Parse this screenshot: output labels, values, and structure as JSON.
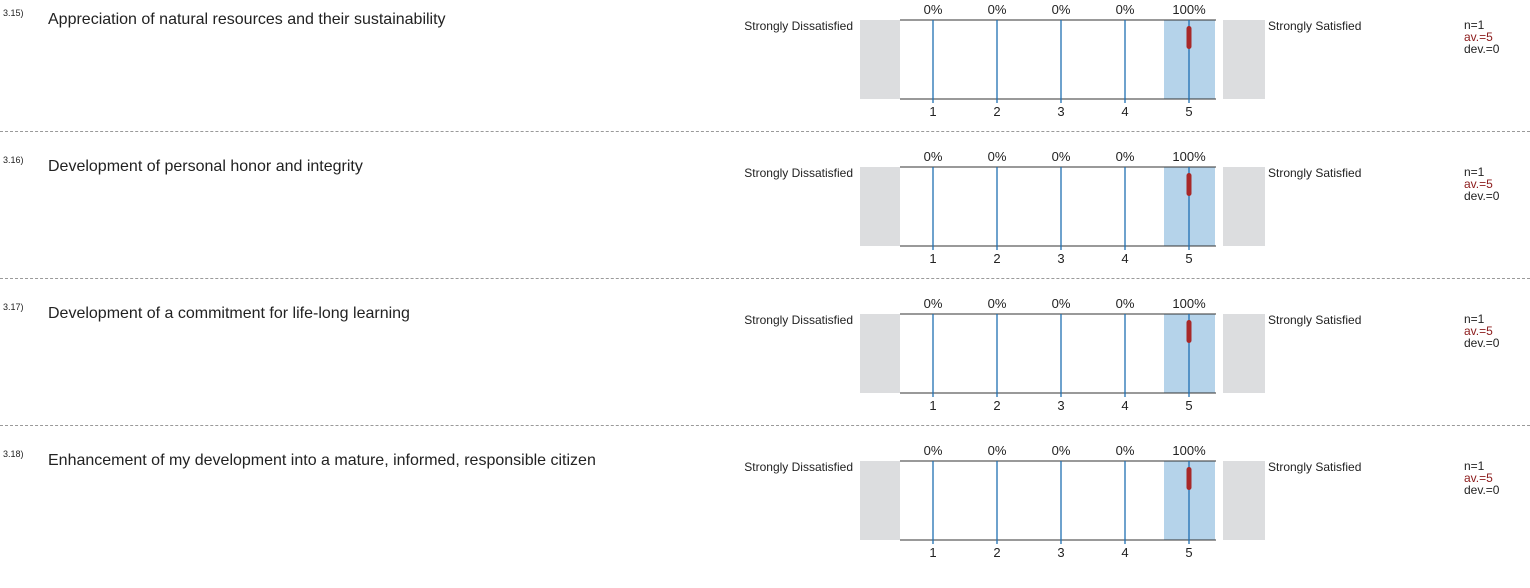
{
  "colors": {
    "grid_line": "#1f6fb2",
    "highlight_fill": "#b5d3ea",
    "side_fill": "#dcdddf",
    "mean_marker": "#a82828",
    "text": "#222222",
    "average_text": "#8b1a1a"
  },
  "questions": [
    {
      "number": "3.15)",
      "text": "Appreciation of natural resources and their sustainability",
      "left_label": "Strongly Dissatisfied",
      "right_label": "Strongly Satisfied",
      "n": "n=1",
      "av": "av.=5",
      "dev": "dev.=0"
    },
    {
      "number": "3.16)",
      "text": "Development of personal honor and integrity",
      "left_label": "Strongly Dissatisfied",
      "right_label": "Strongly Satisfied",
      "n": "n=1",
      "av": "av.=5",
      "dev": "dev.=0"
    },
    {
      "number": "3.17)",
      "text": "Development of a commitment for life-long learning",
      "left_label": "Strongly Dissatisfied",
      "right_label": "Strongly Satisfied",
      "n": "n=1",
      "av": "av.=5",
      "dev": "dev.=0"
    },
    {
      "number": "3.18)",
      "text": "Enhancement of my development into a mature, informed, responsible citizen",
      "left_label": "Strongly Dissatisfied",
      "right_label": "Strongly Satisfied",
      "n": "n=1",
      "av": "av.=5",
      "dev": "dev.=0"
    }
  ],
  "chart_data": [
    {
      "type": "bar",
      "categories": [
        "1",
        "2",
        "3",
        "4",
        "5"
      ],
      "percent_labels": [
        "0%",
        "0%",
        "0%",
        "0%",
        "100%"
      ],
      "values": [
        0,
        0,
        0,
        0,
        100
      ],
      "mean": 5,
      "deviation": 0
    },
    {
      "type": "bar",
      "categories": [
        "1",
        "2",
        "3",
        "4",
        "5"
      ],
      "percent_labels": [
        "0%",
        "0%",
        "0%",
        "0%",
        "100%"
      ],
      "values": [
        0,
        0,
        0,
        0,
        100
      ],
      "mean": 5,
      "deviation": 0
    },
    {
      "type": "bar",
      "categories": [
        "1",
        "2",
        "3",
        "4",
        "5"
      ],
      "percent_labels": [
        "0%",
        "0%",
        "0%",
        "0%",
        "100%"
      ],
      "values": [
        0,
        0,
        0,
        0,
        100
      ],
      "mean": 5,
      "deviation": 0
    },
    {
      "type": "bar",
      "categories": [
        "1",
        "2",
        "3",
        "4",
        "5"
      ],
      "percent_labels": [
        "0%",
        "0%",
        "0%",
        "0%",
        "100%"
      ],
      "values": [
        0,
        0,
        0,
        0,
        100
      ],
      "mean": 5,
      "deviation": 0
    }
  ]
}
